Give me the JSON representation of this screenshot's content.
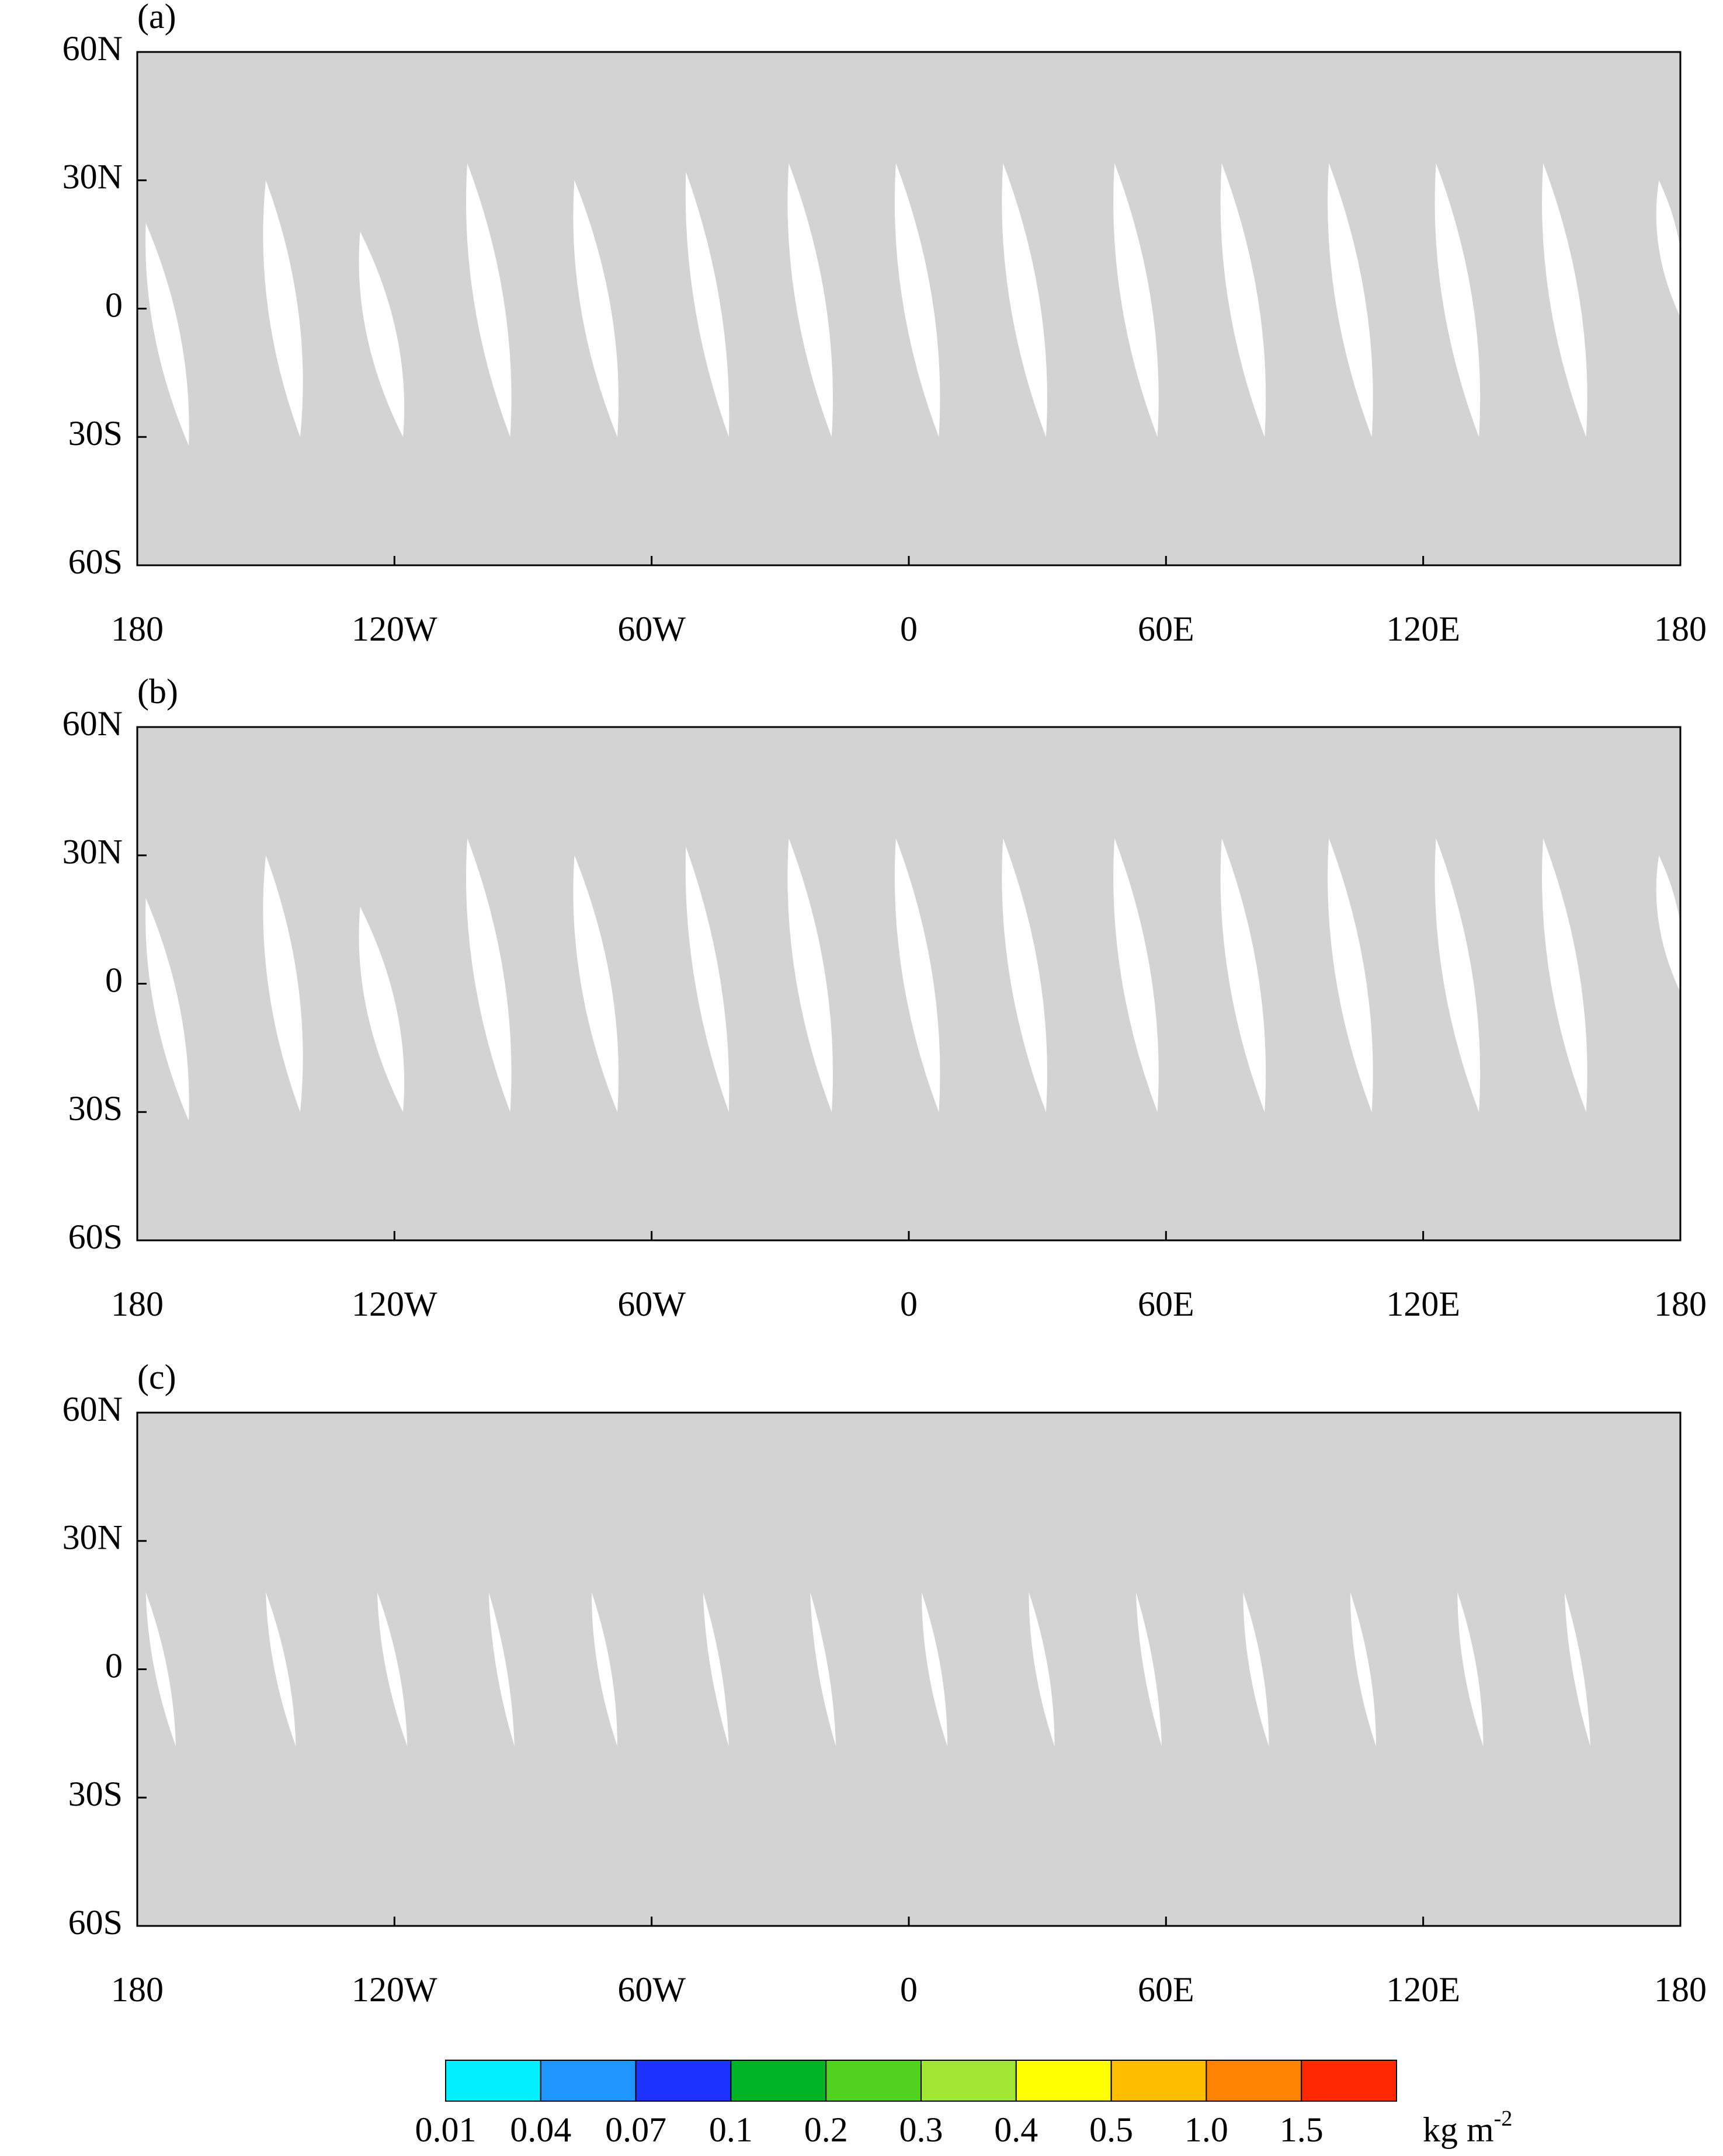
{
  "chart_data": [
    {
      "type": "map",
      "title": "(a)",
      "xlim": [
        -180,
        180
      ],
      "ylim": [
        -60,
        60
      ],
      "xticks": [
        {
          "value": -180,
          "label": "180"
        },
        {
          "value": -120,
          "label": "120W"
        },
        {
          "value": -60,
          "label": "60W"
        },
        0,
        {
          "value": 60,
          "label": "60E"
        },
        {
          "value": 120,
          "label": "120E"
        },
        180
      ],
      "yticks": [
        {
          "value": 60,
          "label": "60N"
        },
        {
          "value": 30,
          "label": "30N"
        },
        0,
        {
          "value": -30,
          "label": "30S"
        },
        {
          "value": -60,
          "label": "60S"
        }
      ]
    },
    {
      "type": "map",
      "title": "(b)",
      "xlim": [
        -180,
        180
      ],
      "ylim": [
        -60,
        60
      ],
      "xticks": [
        {
          "value": -180,
          "label": "180"
        },
        {
          "value": -120,
          "label": "120W"
        },
        {
          "value": -60,
          "label": "60W"
        },
        0,
        {
          "value": 60,
          "label": "60E"
        },
        {
          "value": 120,
          "label": "120E"
        },
        180
      ],
      "yticks": [
        {
          "value": 60,
          "label": "60N"
        },
        {
          "value": 30,
          "label": "30N"
        },
        0,
        {
          "value": -30,
          "label": "30S"
        },
        {
          "value": -60,
          "label": "60S"
        }
      ]
    },
    {
      "type": "map",
      "title": "(c)",
      "xlim": [
        -180,
        180
      ],
      "ylim": [
        -60,
        60
      ],
      "xticks": [
        {
          "value": -180,
          "label": "180"
        },
        {
          "value": -120,
          "label": "120W"
        },
        {
          "value": -60,
          "label": "60W"
        },
        0,
        {
          "value": 60,
          "label": "60E"
        },
        {
          "value": 120,
          "label": "120E"
        },
        180
      ],
      "yticks": [
        {
          "value": 60,
          "label": "60N"
        },
        {
          "value": 30,
          "label": "30N"
        },
        0,
        {
          "value": -30,
          "label": "30S"
        },
        {
          "value": -60,
          "label": "60S"
        }
      ]
    }
  ],
  "colorbar": {
    "levels": [
      0.01,
      0.04,
      0.07,
      0.1,
      0.2,
      0.3,
      0.4,
      0.5,
      {
        "value": 1,
        "label": "1.0"
      },
      1.5
    ],
    "colors": [
      "#00f0ff",
      "#1e96ff",
      "#1e32ff",
      "#00b428",
      "#50d21e",
      "#a0e632",
      "#ffff00",
      "#ffbe00",
      "#ff8200",
      "#ff2800"
    ],
    "unit": "kg m",
    "unit_exponent": "-2"
  }
}
